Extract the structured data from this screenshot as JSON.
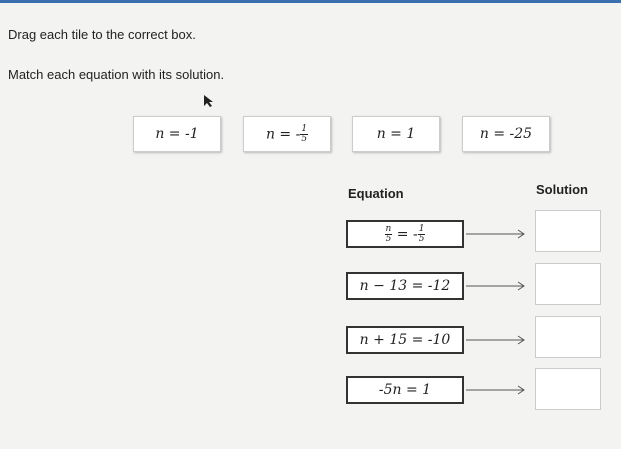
{
  "header": {
    "instruction": "Drag each tile to the correct box.",
    "prompt": "Match each equation with its solution."
  },
  "tiles": [
    [
      "n = -1"
    ],
    [
      "n = -",
      {
        "num": "1",
        "den": "5"
      }
    ],
    [
      "n = 1"
    ],
    [
      "n = -25"
    ]
  ],
  "columns": {
    "equation": "Equation",
    "solution": "Solution"
  },
  "equations": [
    [
      {
        "num": "n",
        "den": "5"
      },
      " = -",
      {
        "num": "1",
        "den": "5"
      }
    ],
    [
      "n − 13 = -12"
    ],
    [
      "n + 15 = -10"
    ],
    [
      "-5n = 1"
    ]
  ]
}
